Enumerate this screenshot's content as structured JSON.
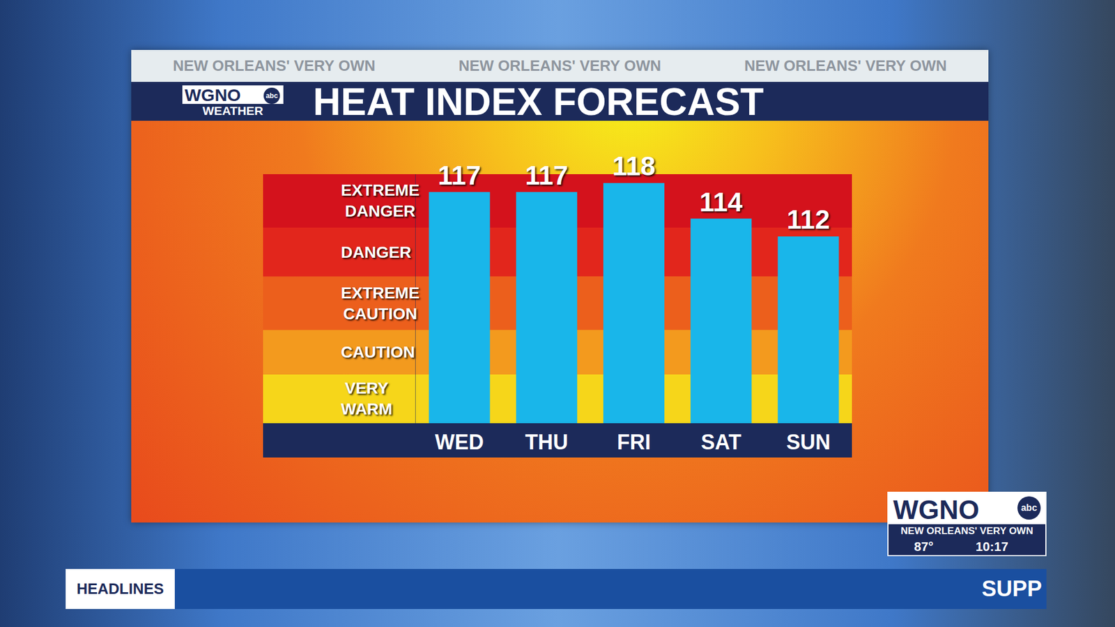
{
  "chart_data": {
    "type": "bar",
    "title": "HEAT INDEX FORECAST",
    "categories": [
      "WED",
      "THU",
      "FRI",
      "SAT",
      "SUN"
    ],
    "values": [
      117,
      117,
      118,
      114,
      112
    ],
    "color": "#19b6ea",
    "ylim": [
      91,
      119
    ],
    "tick_labels": "x",
    "data_labels": true,
    "bands": [
      {
        "label": "VERY WARM",
        "from": 91,
        "to": 96.5,
        "color": "#f6d61a"
      },
      {
        "label": "CAUTION",
        "from": 96.5,
        "to": 101.5,
        "color": "#f39a1e"
      },
      {
        "label": "EXTREME CAUTION",
        "from": 101.5,
        "to": 107.5,
        "color": "#ec5f1c"
      },
      {
        "label": "DANGER",
        "from": 107.5,
        "to": 113,
        "color": "#e2261c"
      },
      {
        "label": "EXTREME DANGER",
        "from": 113,
        "to": 119,
        "color": "#d4121c"
      }
    ]
  },
  "broadcast": {
    "header_strip": [
      "NEW ORLEANS' VERY OWN",
      "NEW ORLEANS' VERY OWN",
      "NEW ORLEANS' VERY OWN"
    ],
    "logo": {
      "call": "WGNO",
      "network": "abc",
      "label": "WEATHER"
    },
    "station_bug": {
      "call": "WGNO",
      "network": "abc",
      "tagline": "NEW ORLEANS' VERY OWN",
      "temperature": "87°",
      "time": "10:17"
    },
    "ticker": {
      "heading": "HEADLINES",
      "text": "SUPP"
    }
  }
}
